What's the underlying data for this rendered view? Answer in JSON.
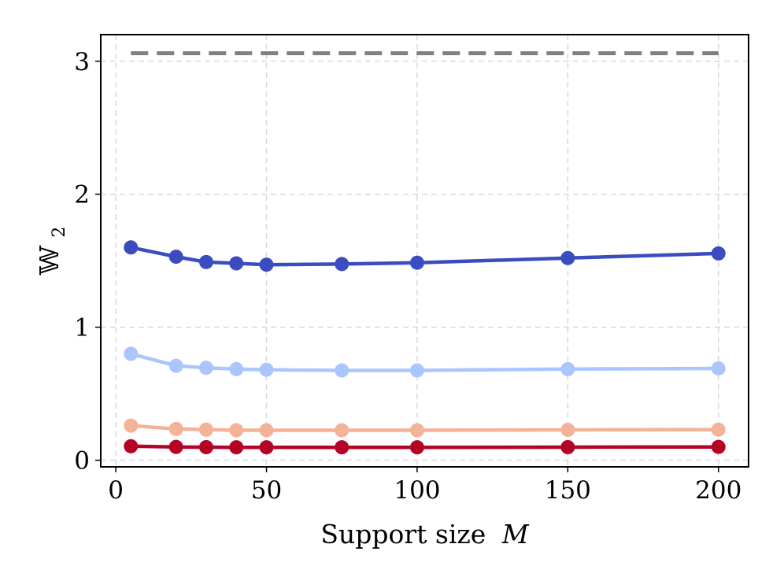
{
  "chart_data": {
    "type": "line",
    "xlabel": "Support size",
    "xlabel_var": "M",
    "ylabel": "𝕎",
    "ylabel_sub": "2",
    "xlim": [
      -5,
      210
    ],
    "ylim": [
      -0.05,
      3.2
    ],
    "xticks": [
      0,
      50,
      100,
      150,
      200
    ],
    "yticks": [
      0,
      1,
      2,
      3
    ],
    "grid": true,
    "x": [
      5,
      20,
      30,
      40,
      50,
      75,
      100,
      150,
      200
    ],
    "series": [
      {
        "color": "#3a4cc0",
        "marker": "circle",
        "values": [
          1.6,
          1.53,
          1.49,
          1.48,
          1.47,
          1.475,
          1.485,
          1.52,
          1.555
        ]
      },
      {
        "color": "#aac6fd",
        "marker": "circle",
        "values": [
          0.8,
          0.71,
          0.695,
          0.685,
          0.68,
          0.675,
          0.675,
          0.685,
          0.69
        ]
      },
      {
        "color": "#f4b398",
        "marker": "circle",
        "values": [
          0.26,
          0.235,
          0.23,
          0.225,
          0.225,
          0.225,
          0.225,
          0.228,
          0.23
        ]
      },
      {
        "color": "#b40426",
        "marker": "circle",
        "values": [
          0.105,
          0.1,
          0.098,
          0.097,
          0.097,
          0.097,
          0.097,
          0.098,
          0.1
        ]
      }
    ],
    "reference_line": {
      "color": "#808080",
      "style": "dashed",
      "y": 3.06,
      "x_range": [
        5,
        200
      ]
    }
  }
}
